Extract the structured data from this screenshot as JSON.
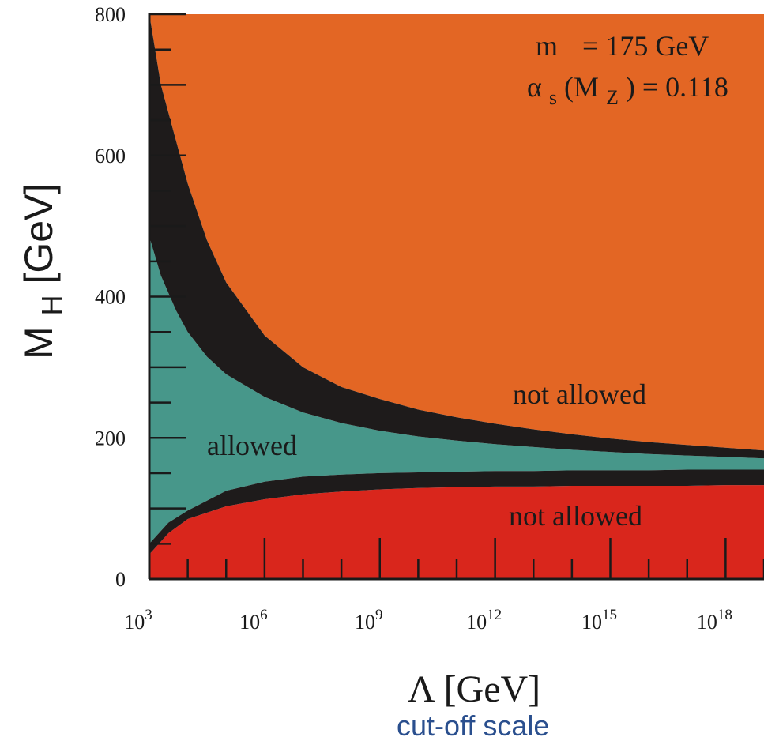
{
  "chart_data": {
    "type": "area",
    "x_scale": "log10",
    "xlabel": "Λ [GeV]",
    "xlabel_sub": "cut-off scale",
    "ylabel_main": "M",
    "ylabel_sub": "H",
    "ylabel_unit": "[GeV]",
    "xlim_exp": [
      3,
      19
    ],
    "ylim": [
      0,
      800
    ],
    "x_ticks": [
      {
        "base": "10",
        "exp": "3",
        "value": 3
      },
      {
        "base": "10",
        "exp": "6",
        "value": 6
      },
      {
        "base": "10",
        "exp": "9",
        "value": 9
      },
      {
        "base": "10",
        "exp": "12",
        "value": 12
      },
      {
        "base": "10",
        "exp": "15",
        "value": 15
      },
      {
        "base": "10",
        "exp": "18",
        "value": 18
      }
    ],
    "y_ticks": [
      {
        "label": "0",
        "value": 0
      },
      {
        "label": "200",
        "value": 200
      },
      {
        "label": "400",
        "value": 400
      },
      {
        "label": "600",
        "value": 600
      },
      {
        "label": "800",
        "value": 800
      }
    ],
    "params": {
      "line1_left": "m",
      "line1_right": "= 175 GeV",
      "line2_alpha": "α",
      "line2_s": "s",
      "line2_open": "(M",
      "line2_Z": "Z",
      "line2_close": ") = 0.118"
    },
    "bands": [
      {
        "name": "upper_bound",
        "x": [
          3,
          3.3,
          3.7,
          4,
          4.5,
          5,
          6,
          7,
          8,
          9,
          10,
          11,
          12,
          13,
          14,
          15,
          16,
          17,
          18,
          19
        ],
        "lower": [
          485,
          430,
          380,
          350,
          315,
          290,
          258,
          236,
          221,
          210,
          202,
          196,
          191,
          187,
          183,
          180,
          177,
          175,
          173,
          171
        ],
        "upper": [
          800,
          700,
          620,
          560,
          480,
          420,
          345,
          300,
          272,
          255,
          240,
          229,
          220,
          212,
          205,
          199,
          194,
          190,
          186,
          182
        ]
      },
      {
        "name": "lower_bound",
        "x": [
          3,
          3.5,
          4,
          5,
          6,
          7,
          8,
          9,
          10,
          11,
          12,
          13,
          14,
          15,
          16,
          17,
          18,
          19
        ],
        "lower": [
          35,
          65,
          85,
          103,
          113,
          120,
          124,
          127,
          129,
          130,
          131,
          131,
          132,
          132,
          132,
          132,
          133,
          133
        ],
        "upper": [
          50,
          80,
          97,
          125,
          138,
          145,
          148,
          150,
          151,
          152,
          153,
          153,
          154,
          154,
          154,
          155,
          155,
          155
        ]
      }
    ],
    "regions": [
      {
        "label": "allowed",
        "color": "#47978a"
      },
      {
        "label": "not allowed",
        "color": "#e36624",
        "position": "upper"
      },
      {
        "label": "not allowed",
        "color": "#d9261c",
        "position": "lower"
      }
    ],
    "band_color": "#1e1b1b"
  }
}
